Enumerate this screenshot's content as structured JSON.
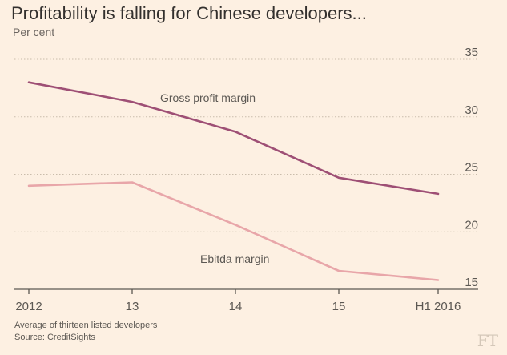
{
  "title": "Profitability is falling for Chinese developers...",
  "subtitle": "Per cent",
  "footnotes": [
    "Average of thirteen listed developers",
    "Source: CreditSights"
  ],
  "logo": "FT",
  "colors": {
    "background": "#fdf0e2",
    "gross": "#9e4f75",
    "ebitda": "#e8a6a9",
    "grid": "#c9bcab",
    "axis": "#5c5853"
  },
  "chart_data": {
    "type": "line",
    "categories": [
      "2012",
      "13",
      "14",
      "15",
      "H1 2016"
    ],
    "series": [
      {
        "name": "Gross profit margin",
        "values": [
          33.0,
          31.3,
          28.7,
          24.7,
          23.3
        ]
      },
      {
        "name": "Ebitda margin",
        "values": [
          24.0,
          24.3,
          20.6,
          16.6,
          15.8
        ]
      }
    ],
    "yticks": [
      35,
      30,
      25,
      20,
      15
    ],
    "ylim": [
      15,
      35
    ],
    "grid": true,
    "ylabel": "Per cent",
    "xlabel": ""
  }
}
